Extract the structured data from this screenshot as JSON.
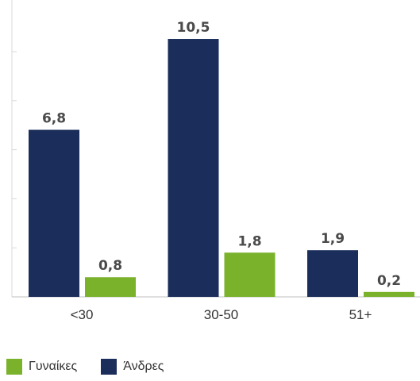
{
  "chart_data": {
    "type": "bar",
    "categories": [
      "<30",
      "30-50",
      "51+"
    ],
    "series": [
      {
        "name": "Άνδρες",
        "values": [
          6.8,
          10.5,
          1.9
        ],
        "labels": [
          "6,8",
          "10,5",
          "1,9"
        ],
        "color": "#1b2d5a"
      },
      {
        "name": "Γυναίκες",
        "values": [
          0.8,
          1.8,
          0.2
        ],
        "labels": [
          "0,8",
          "1,8",
          "0,2"
        ],
        "color": "#7ab22c"
      }
    ],
    "ylim": [
      0,
      12
    ],
    "grid": false,
    "legend_placement": "bottom-left"
  },
  "legend": {
    "women": "Γυναίκες",
    "men": "Άνδρες"
  }
}
